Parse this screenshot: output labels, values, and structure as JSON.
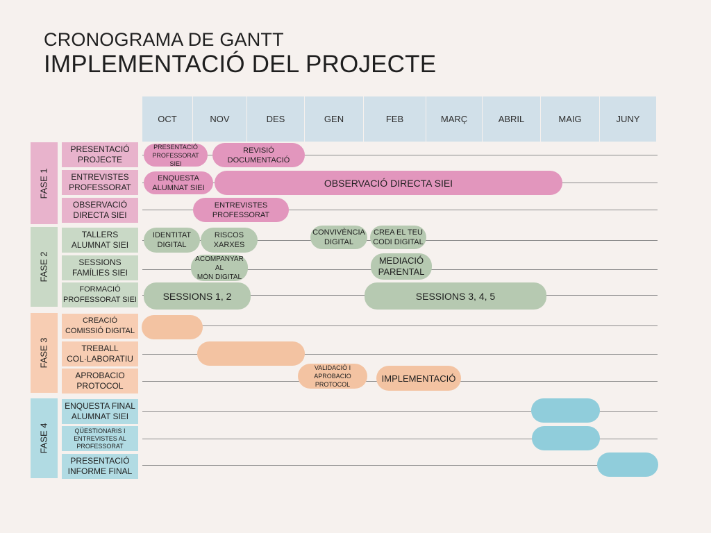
{
  "title": {
    "line1": "CRONOGRAMA DE GANTT",
    "line2": "IMPLEMENTACIÓ DEL PROJECTE"
  },
  "months": [
    "OCT",
    "NOV",
    "DES",
    "GEN",
    "FEB",
    "MARÇ",
    "ABRIL",
    "MAIG",
    "JUNY"
  ],
  "phases": [
    {
      "label": "FASE 1",
      "color": "#e8b3cc"
    },
    {
      "label": "FASE 2",
      "color": "#c9d9c6"
    },
    {
      "label": "FASE 3",
      "color": "#f7cdb3"
    },
    {
      "label": "FASE 4",
      "color": "#b1dbe3"
    }
  ],
  "tasks": [
    "PRESENTACIÓ\nPROJECTE",
    "ENTREVISTES\nPROFESSORAT",
    "OBSERVACIÓ\nDIRECTA SIEI",
    "TALLERS\nALUMNAT SIEI",
    "SESSIONS\nFAMÍLIES SIEI",
    "FORMACIÓ\nPROFESSORAT SIEI",
    "CREACIÓ\nCOMISSIÓ DIGITAL",
    "TREBALL\nCOL·LABORATIU",
    "APROBACIO\nPROTOCOL",
    "ENQUESTA FINAL\nALUMNAT SIEI",
    "QÜESTIONARIS I\nENTREVISTES AL\nPROFESSORAT",
    "PRESENTACIÓ\nINFORME FINAL"
  ],
  "bars": [
    "PRESENTACIÓ\nPROFESSORAT SIEI",
    "REVISIÓ\nDOCUMENTACIÓ",
    "ENQUESTA\nALUMNAT SIEI",
    "OBSERVACIÓ DIRECTA SIEI",
    "ENTREVISTES\nPROFESSORAT",
    "IDENTITAT\nDIGITAL",
    "RISCOS\nXARXES",
    "CONVIVÈNCIA\nDIGITAL",
    "CREA EL TEU\nCODI DIGITAL",
    "ACOMPANYAR AL\nMÓN DIGITAL",
    "MEDIACIÓ\nPARENTAL",
    "SESSIONS 1, 2",
    "SESSIONS 3, 4, 5",
    "",
    "",
    "VALIDACIÓ I\nAPROBACIO\nPROTOCOL",
    "IMPLEMENTACIÓ",
    "",
    "",
    ""
  ],
  "colors": {
    "background": "#f6f1ee",
    "header": "#d1e0e9",
    "phase1_bar": "#e296bd",
    "phase2_bar": "#b6c9b1",
    "phase3_bar": "#f3c3a2",
    "phase4_bar": "#90cddb"
  }
}
